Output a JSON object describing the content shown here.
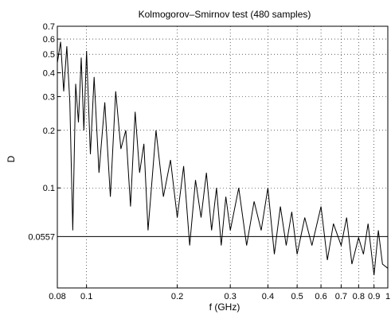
{
  "chart_data": {
    "type": "line",
    "title": "Kolmogorov–Smirnov test (480 samples)",
    "xlabel": "f (GHz)",
    "ylabel": "D",
    "x_scale": "log",
    "y_scale": "log",
    "xlim": [
      0.08,
      1.0
    ],
    "ylim": [
      0.03,
      0.7
    ],
    "grid": true,
    "x_ticks": [
      {
        "value": 0.08,
        "label": "0.08"
      },
      {
        "value": 0.1,
        "label": "0.1"
      },
      {
        "value": 0.2,
        "label": "0.2"
      },
      {
        "value": 0.3,
        "label": "0.3"
      },
      {
        "value": 0.4,
        "label": "0.4"
      },
      {
        "value": 0.5,
        "label": "0.5"
      },
      {
        "value": 0.6,
        "label": "0.6"
      },
      {
        "value": 0.7,
        "label": "0.7"
      },
      {
        "value": 0.8,
        "label": "0.8"
      },
      {
        "value": 0.9,
        "label": "0.9"
      },
      {
        "value": 1.0,
        "label": "1"
      }
    ],
    "y_ticks": [
      {
        "value": 0.1,
        "label": "0.1"
      },
      {
        "value": 0.2,
        "label": "0.2"
      },
      {
        "value": 0.3,
        "label": "0.3"
      },
      {
        "value": 0.4,
        "label": "0.4"
      },
      {
        "value": 0.5,
        "label": "0.5"
      },
      {
        "value": 0.6,
        "label": "0.6"
      },
      {
        "value": 0.7,
        "label": "0.7"
      }
    ],
    "threshold": {
      "value": 0.0557,
      "label": "0.0557"
    },
    "series": [
      {
        "x": [
          0.08,
          0.082,
          0.084,
          0.086,
          0.088,
          0.09,
          0.092,
          0.094,
          0.096,
          0.098,
          0.1,
          0.103,
          0.106,
          0.11,
          0.115,
          0.12,
          0.125,
          0.13,
          0.135,
          0.14,
          0.145,
          0.15,
          0.155,
          0.16,
          0.17,
          0.18,
          0.19,
          0.2,
          0.21,
          0.22,
          0.23,
          0.24,
          0.25,
          0.26,
          0.27,
          0.28,
          0.29,
          0.3,
          0.32,
          0.34,
          0.36,
          0.38,
          0.4,
          0.42,
          0.44,
          0.46,
          0.48,
          0.5,
          0.53,
          0.56,
          0.6,
          0.63,
          0.66,
          0.7,
          0.73,
          0.76,
          0.8,
          0.83,
          0.86,
          0.9,
          0.93,
          0.96,
          1.0
        ],
        "y": [
          0.45,
          0.58,
          0.32,
          0.55,
          0.28,
          0.06,
          0.35,
          0.22,
          0.48,
          0.2,
          0.52,
          0.15,
          0.38,
          0.12,
          0.28,
          0.09,
          0.32,
          0.16,
          0.2,
          0.08,
          0.25,
          0.12,
          0.17,
          0.06,
          0.2,
          0.09,
          0.14,
          0.07,
          0.13,
          0.05,
          0.11,
          0.07,
          0.12,
          0.06,
          0.1,
          0.05,
          0.09,
          0.06,
          0.1,
          0.05,
          0.085,
          0.06,
          0.1,
          0.045,
          0.08,
          0.05,
          0.075,
          0.045,
          0.07,
          0.05,
          0.08,
          0.042,
          0.065,
          0.05,
          0.07,
          0.04,
          0.055,
          0.045,
          0.065,
          0.035,
          0.06,
          0.04,
          0.038
        ]
      }
    ]
  }
}
